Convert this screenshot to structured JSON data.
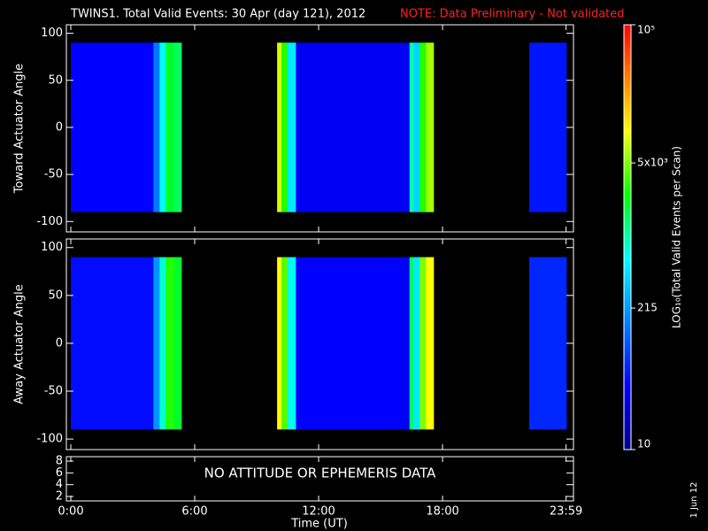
{
  "chart_data": {
    "type": "heatmap",
    "title": "TWINS1. Total Valid Events: 30 Apr (day 121), 2012",
    "note": "NOTE: Data Preliminary - Not validated",
    "xlabel": "Time (UT)",
    "xlim": [
      -0.214,
      24.34
    ],
    "xticks": [
      {
        "value": 0,
        "label": "0:00"
      },
      {
        "value": 6,
        "label": "6:00"
      },
      {
        "value": 12,
        "label": "12:00"
      },
      {
        "value": 18,
        "label": "18:00"
      },
      {
        "value": 23.98,
        "label": "23:59"
      }
    ],
    "colorbar_label": "LOG₁₀(Total Valid Events per Scan)",
    "zlim": [
      10,
      100000
    ],
    "zscale": "log",
    "zticks": [
      10,
      215,
      {
        "value": 5000,
        "label": "5x10³"
      },
      {
        "value": 100000,
        "label": "10⁵"
      }
    ],
    "panels": [
      {
        "ylabel": "Toward Actuator Angle",
        "ylim": [
          -111,
          109
        ],
        "yticks": [
          -100,
          -50,
          0,
          50,
          100
        ],
        "angle_range": [
          -90,
          90
        ],
        "bins": [
          0,
          4.0,
          4.3,
          4.6,
          5.0,
          5.36,
          9.99,
          10.2,
          10.5,
          10.9,
          16.4,
          16.6,
          16.9,
          17.2,
          17.57,
          22.2,
          24
        ],
        "values": [
          40,
          150,
          600,
          2000,
          1500,
          null,
          8000,
          3000,
          500,
          35,
          1000,
          400,
          3000,
          6000,
          null,
          50
        ]
      },
      {
        "ylabel": "Away Actuator Angle",
        "ylim": [
          -111,
          109
        ],
        "yticks": [
          -100,
          -50,
          0,
          50,
          100
        ],
        "angle_range": [
          -90,
          90
        ],
        "bins": [
          0,
          4.0,
          4.3,
          4.6,
          5.0,
          5.36,
          9.99,
          10.2,
          10.5,
          10.9,
          16.4,
          16.6,
          16.9,
          17.2,
          17.57,
          22.2,
          24
        ],
        "values": [
          45,
          200,
          800,
          3000,
          2000,
          null,
          10000,
          4000,
          700,
          40,
          1500,
          500,
          5000,
          10000,
          null,
          60
        ]
      },
      {
        "ylim": [
          1.25,
          8.75
        ],
        "yticks": [
          2,
          4,
          6,
          8
        ],
        "annotation": "NO ATTITUDE OR EPHEMERIS DATA"
      }
    ],
    "date_stamp": "1 Jun 12"
  }
}
